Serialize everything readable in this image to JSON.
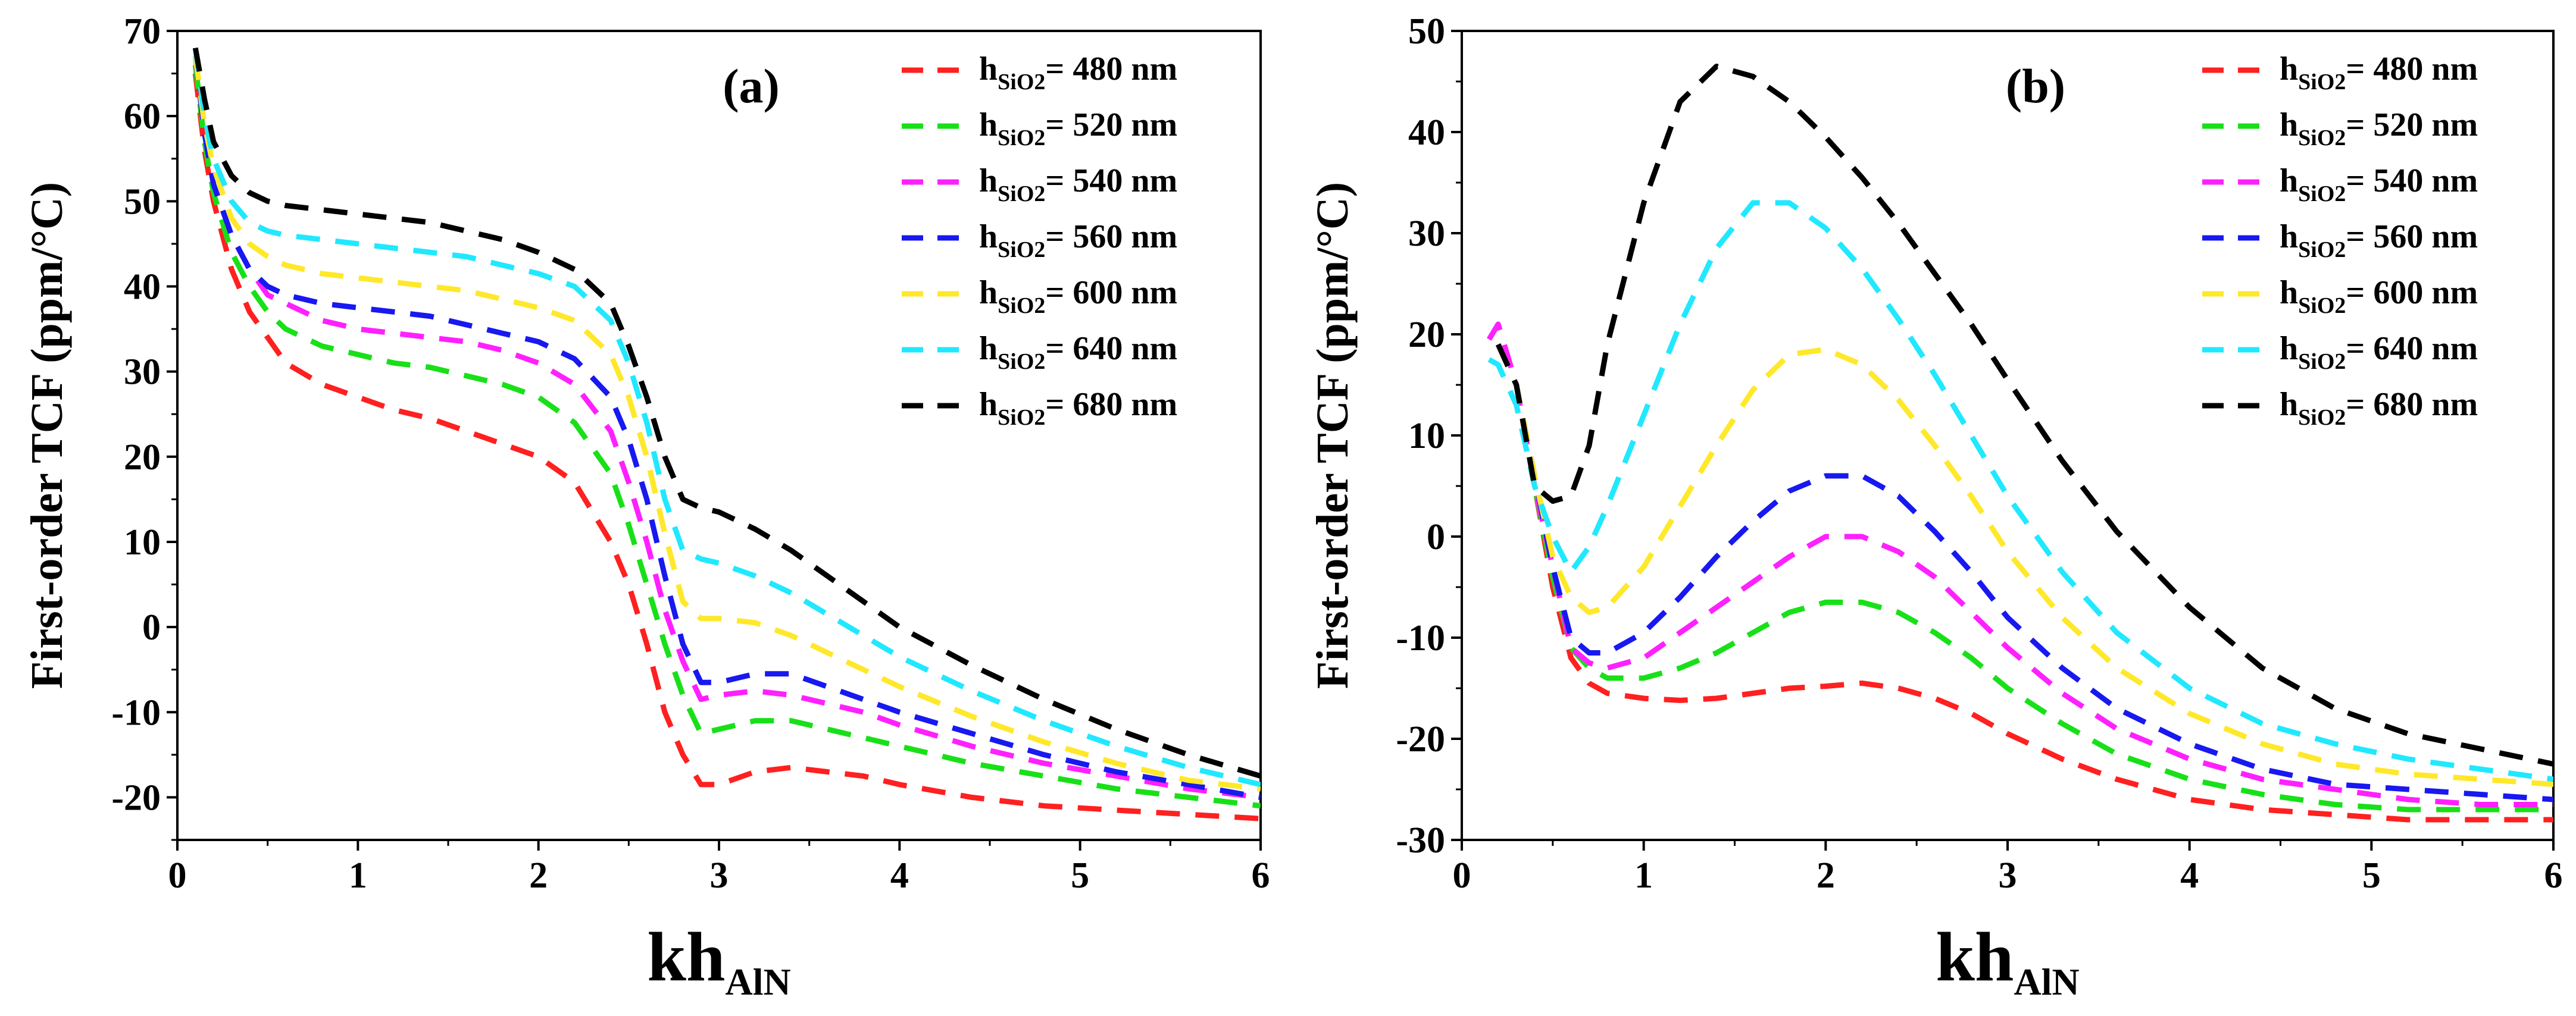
{
  "chart_data": [
    {
      "type": "line",
      "panel_label": "(a)",
      "xlabel": {
        "main": "kh",
        "sub": "AlN"
      },
      "ylabel": "First-order TCF (ppm/°C)",
      "xlim": [
        0,
        6
      ],
      "ylim": [
        -25,
        70
      ],
      "xticks": [
        0,
        1,
        2,
        3,
        4,
        5,
        6
      ],
      "yticks": [
        -20,
        -10,
        0,
        10,
        20,
        30,
        40,
        50,
        60,
        70
      ],
      "grid": false,
      "legend_position": "top-right",
      "series": [
        {
          "label": {
            "main": "h",
            "sub": "SiO2",
            "rest": "= 480 nm"
          },
          "color": "#ff2020",
          "x": [
            0.1,
            0.15,
            0.2,
            0.3,
            0.4,
            0.5,
            0.6,
            0.8,
            1.0,
            1.2,
            1.4,
            1.6,
            1.8,
            2.0,
            2.2,
            2.4,
            2.5,
            2.6,
            2.7,
            2.8,
            2.9,
            3.0,
            3.2,
            3.4,
            3.6,
            3.8,
            4.0,
            4.4,
            4.8,
            5.2,
            5.6,
            6.0
          ],
          "y": [
            65,
            56,
            50,
            42,
            37,
            34,
            31,
            28.5,
            27,
            25.5,
            24.5,
            23,
            21.5,
            20,
            17,
            10,
            5,
            -2,
            -10,
            -15,
            -18.5,
            -18.5,
            -17,
            -16.5,
            -17,
            -17.5,
            -18.5,
            -20,
            -21,
            -21.5,
            -22,
            -22.5
          ]
        },
        {
          "label": {
            "main": "h",
            "sub": "SiO2",
            "rest": "= 520 nm"
          },
          "color": "#18e018",
          "x": [
            0.1,
            0.15,
            0.2,
            0.3,
            0.4,
            0.5,
            0.6,
            0.8,
            1.0,
            1.2,
            1.4,
            1.6,
            1.8,
            2.0,
            2.2,
            2.4,
            2.5,
            2.6,
            2.7,
            2.8,
            2.9,
            3.0,
            3.2,
            3.4,
            3.6,
            3.8,
            4.0,
            4.4,
            4.8,
            5.2,
            5.6,
            6.0
          ],
          "y": [
            66,
            57,
            51,
            44,
            40,
            37,
            35,
            33,
            32,
            31,
            30.5,
            29.5,
            28.5,
            27,
            24,
            18,
            12,
            5,
            -2,
            -8,
            -12.5,
            -12,
            -11,
            -11,
            -12,
            -13,
            -14,
            -16,
            -17.5,
            -19,
            -20,
            -21
          ]
        },
        {
          "label": {
            "main": "h",
            "sub": "SiO2",
            "rest": "= 540 nm"
          },
          "color": "#ff20ff",
          "x": [
            0.1,
            0.15,
            0.2,
            0.3,
            0.4,
            0.5,
            0.6,
            0.8,
            1.0,
            1.2,
            1.4,
            1.6,
            1.8,
            2.0,
            2.2,
            2.4,
            2.5,
            2.6,
            2.7,
            2.8,
            2.9,
            3.0,
            3.2,
            3.4,
            3.6,
            3.8,
            4.0,
            4.4,
            4.8,
            5.2,
            5.6,
            6.0
          ],
          "y": [
            67,
            58,
            52,
            46,
            42,
            39,
            38,
            36,
            35,
            34.5,
            34,
            33.5,
            32.5,
            31,
            28.5,
            23,
            17,
            10,
            2,
            -4,
            -8.5,
            -8,
            -7.5,
            -8,
            -9,
            -10,
            -11.5,
            -14,
            -16,
            -17.5,
            -19,
            -20
          ]
        },
        {
          "label": {
            "main": "h",
            "sub": "SiO2",
            "rest": "= 560 nm"
          },
          "color": "#1818f0",
          "x": [
            0.1,
            0.15,
            0.2,
            0.3,
            0.4,
            0.5,
            0.6,
            0.8,
            1.0,
            1.2,
            1.4,
            1.6,
            1.8,
            2.0,
            2.2,
            2.4,
            2.5,
            2.6,
            2.7,
            2.8,
            2.9,
            3.0,
            3.2,
            3.4,
            3.6,
            3.8,
            4.0,
            4.4,
            4.8,
            5.2,
            5.6,
            6.0
          ],
          "y": [
            67,
            58,
            52,
            46,
            42,
            40,
            39,
            38,
            37.5,
            37,
            36.5,
            35.5,
            34.5,
            33.5,
            31.5,
            27,
            22,
            15,
            6,
            -2,
            -6.5,
            -6.5,
            -5.5,
            -5.5,
            -7,
            -8.5,
            -10,
            -12.5,
            -15,
            -17,
            -18.5,
            -20
          ]
        },
        {
          "label": {
            "main": "h",
            "sub": "SiO2",
            "rest": "= 600 nm"
          },
          "color": "#ffe82a",
          "x": [
            0.1,
            0.15,
            0.2,
            0.3,
            0.4,
            0.5,
            0.6,
            0.8,
            1.0,
            1.2,
            1.4,
            1.6,
            1.8,
            2.0,
            2.2,
            2.4,
            2.5,
            2.6,
            2.7,
            2.8,
            2.9,
            3.0,
            3.2,
            3.4,
            3.6,
            3.8,
            4.0,
            4.4,
            4.8,
            5.2,
            5.6,
            6.0
          ],
          "y": [
            67,
            59,
            54,
            48,
            45,
            43.5,
            42.5,
            41.5,
            41,
            40.5,
            40,
            39.5,
            38.5,
            37.5,
            36,
            32,
            27,
            20,
            11,
            3,
            1,
            1,
            0.5,
            -1,
            -3,
            -5,
            -7,
            -10.5,
            -13.5,
            -16,
            -18,
            -19
          ]
        },
        {
          "label": {
            "main": "h",
            "sub": "SiO2",
            "rest": "= 640 nm"
          },
          "color": "#20e8ff",
          "x": [
            0.1,
            0.15,
            0.2,
            0.3,
            0.4,
            0.5,
            0.6,
            0.8,
            1.0,
            1.2,
            1.4,
            1.6,
            1.8,
            2.0,
            2.2,
            2.4,
            2.5,
            2.6,
            2.7,
            2.8,
            2.9,
            3.0,
            3.2,
            3.4,
            3.6,
            3.8,
            4.0,
            4.4,
            4.8,
            5.2,
            5.6,
            6.0
          ],
          "y": [
            68,
            60,
            55,
            50,
            47.5,
            46.5,
            46,
            45.5,
            45,
            44.5,
            44,
            43.5,
            42.5,
            41.5,
            40,
            36,
            31,
            24,
            15,
            9,
            8,
            7.5,
            6,
            4,
            1.5,
            -1,
            -3.5,
            -7.5,
            -11,
            -14,
            -16.5,
            -18.5
          ]
        },
        {
          "label": {
            "main": "h",
            "sub": "SiO2",
            "rest": "= 680 nm"
          },
          "color": "#000000",
          "x": [
            0.1,
            0.15,
            0.2,
            0.3,
            0.4,
            0.5,
            0.6,
            0.8,
            1.0,
            1.2,
            1.4,
            1.6,
            1.8,
            2.0,
            2.2,
            2.4,
            2.5,
            2.6,
            2.7,
            2.8,
            2.9,
            3.0,
            3.2,
            3.4,
            3.6,
            3.8,
            4.0,
            4.4,
            4.8,
            5.2,
            5.6,
            6.0
          ],
          "y": [
            68,
            62,
            57,
            53,
            51,
            50,
            49.5,
            49,
            48.5,
            48,
            47.5,
            46.5,
            45.5,
            44,
            42,
            38,
            33,
            27,
            20,
            15,
            14,
            13.5,
            11.5,
            9,
            6,
            3,
            0,
            -4.5,
            -8.5,
            -12,
            -15,
            -17.5
          ]
        }
      ]
    },
    {
      "type": "line",
      "panel_label": "(b)",
      "xlabel": {
        "main": "kh",
        "sub": "AlN"
      },
      "ylabel": "First-order TCF (ppm/°C)",
      "xlim": [
        0,
        6
      ],
      "ylim": [
        -30,
        50
      ],
      "xticks": [
        0,
        1,
        2,
        3,
        4,
        5,
        6
      ],
      "yticks": [
        -30,
        -20,
        -10,
        0,
        10,
        20,
        30,
        40,
        50
      ],
      "grid": false,
      "legend_position": "top-right",
      "series": [
        {
          "label": {
            "main": "h",
            "sub": "SiO2",
            "rest": "= 480 nm"
          },
          "color": "#ff2020",
          "x": [
            0.2,
            0.3,
            0.4,
            0.5,
            0.6,
            0.7,
            0.8,
            1.0,
            1.2,
            1.4,
            1.6,
            1.8,
            2.0,
            2.2,
            2.4,
            2.6,
            2.8,
            3.0,
            3.3,
            3.6,
            4.0,
            4.4,
            4.8,
            5.2,
            5.6,
            6.0
          ],
          "y": [
            19,
            15,
            5,
            -5,
            -12,
            -14.5,
            -15.5,
            -16,
            -16.2,
            -16,
            -15.5,
            -15,
            -14.8,
            -14.5,
            -15,
            -16,
            -17.5,
            -19.5,
            -22,
            -24,
            -26,
            -27,
            -27.5,
            -28,
            -28,
            -28
          ]
        },
        {
          "label": {
            "main": "h",
            "sub": "SiO2",
            "rest": "= 520 nm"
          },
          "color": "#18e018",
          "x": [
            0.2,
            0.3,
            0.4,
            0.5,
            0.6,
            0.7,
            0.8,
            1.0,
            1.2,
            1.4,
            1.6,
            1.8,
            2.0,
            2.2,
            2.4,
            2.6,
            2.8,
            3.0,
            3.3,
            3.6,
            4.0,
            4.4,
            4.8,
            5.2,
            5.6,
            6.0
          ],
          "y": [
            19,
            15,
            5,
            -4,
            -11,
            -13,
            -14,
            -14,
            -13,
            -11.5,
            -9.5,
            -7.5,
            -6.5,
            -6.5,
            -7.5,
            -9.5,
            -12,
            -15,
            -18.5,
            -21.5,
            -24,
            -25.5,
            -26.5,
            -27,
            -27,
            -27
          ]
        },
        {
          "label": {
            "main": "h",
            "sub": "SiO2",
            "rest": "= 540 nm"
          },
          "color": "#ff20ff",
          "x": [
            0.15,
            0.2,
            0.3,
            0.4,
            0.5,
            0.6,
            0.7,
            0.8,
            1.0,
            1.2,
            1.4,
            1.6,
            1.8,
            2.0,
            2.2,
            2.4,
            2.6,
            2.8,
            3.0,
            3.3,
            3.6,
            4.0,
            4.4,
            4.8,
            5.2,
            5.6,
            6.0
          ],
          "y": [
            19.5,
            21,
            15,
            5,
            -3,
            -11,
            -12.5,
            -13,
            -12,
            -9.5,
            -7,
            -4.5,
            -2,
            0,
            0,
            -1.5,
            -4,
            -7.5,
            -11,
            -15.5,
            -19,
            -22,
            -24,
            -25,
            -26,
            -26.5,
            -26.5
          ]
        },
        {
          "label": {
            "main": "h",
            "sub": "SiO2",
            "rest": "= 560 nm"
          },
          "color": "#1818f0",
          "x": [
            0.2,
            0.3,
            0.4,
            0.5,
            0.6,
            0.7,
            0.8,
            1.0,
            1.2,
            1.4,
            1.6,
            1.8,
            2.0,
            2.2,
            2.4,
            2.6,
            2.8,
            3.0,
            3.3,
            3.6,
            4.0,
            4.4,
            4.8,
            5.2,
            5.6,
            6.0
          ],
          "y": [
            19,
            15,
            6,
            -3,
            -10,
            -11.5,
            -11.5,
            -9.5,
            -6,
            -2,
            1.5,
            4.5,
            6,
            6,
            4,
            0.5,
            -3.5,
            -8,
            -13,
            -17,
            -20.5,
            -23,
            -24.5,
            -25,
            -25.5,
            -26
          ]
        },
        {
          "label": {
            "main": "h",
            "sub": "SiO2",
            "rest": "= 600 nm"
          },
          "color": "#ffe82a",
          "x": [
            0.2,
            0.3,
            0.4,
            0.5,
            0.6,
            0.7,
            0.8,
            1.0,
            1.2,
            1.4,
            1.6,
            1.8,
            2.0,
            2.2,
            2.4,
            2.6,
            2.8,
            3.0,
            3.3,
            3.6,
            4.0,
            4.4,
            4.8,
            5.2,
            5.6,
            6.0
          ],
          "y": [
            19,
            15,
            6,
            -2,
            -6,
            -7.5,
            -7,
            -3,
            3,
            9,
            14.5,
            18,
            18.5,
            17,
            13.5,
            9,
            4,
            -1.5,
            -8,
            -13,
            -17.5,
            -20.5,
            -22.5,
            -23.5,
            -24,
            -24.5
          ]
        },
        {
          "label": {
            "main": "h",
            "sub": "SiO2",
            "rest": "= 640 nm"
          },
          "color": "#20e8ff",
          "x": [
            0.15,
            0.2,
            0.3,
            0.4,
            0.5,
            0.6,
            0.7,
            0.8,
            1.0,
            1.2,
            1.4,
            1.6,
            1.8,
            2.0,
            2.2,
            2.4,
            2.6,
            2.8,
            3.0,
            3.3,
            3.6,
            4.0,
            4.4,
            4.8,
            5.2,
            5.6,
            6.0
          ],
          "y": [
            17.5,
            17,
            13,
            5,
            0,
            -3.5,
            -1,
            3,
            12,
            21,
            28.5,
            33,
            33,
            30.5,
            26.5,
            21.5,
            16,
            10,
            4,
            -3.5,
            -9.5,
            -15,
            -18.5,
            -20.5,
            -22,
            -23,
            -24
          ]
        },
        {
          "label": {
            "main": "h",
            "sub": "SiO2",
            "rest": "= 680 nm"
          },
          "color": "#000000",
          "x": [
            0.2,
            0.3,
            0.4,
            0.5,
            0.6,
            0.7,
            0.8,
            1.0,
            1.2,
            1.4,
            1.6,
            1.8,
            2.0,
            2.2,
            2.4,
            2.6,
            2.8,
            3.0,
            3.3,
            3.6,
            4.0,
            4.4,
            4.8,
            5.2,
            5.6,
            6.0
          ],
          "y": [
            19,
            15,
            5,
            3.5,
            4,
            9,
            19,
            33,
            43,
            46.5,
            45.5,
            43,
            39.5,
            35.5,
            31,
            26,
            21,
            15.5,
            7.5,
            0.5,
            -7,
            -13,
            -17,
            -19.5,
            -21,
            -22.5
          ]
        }
      ]
    }
  ]
}
